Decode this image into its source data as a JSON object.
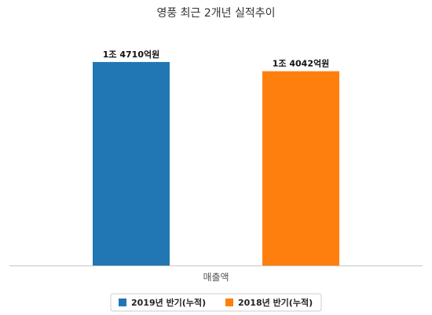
{
  "chart_data": {
    "type": "bar",
    "title": "영풍 최근 2개년 실적추이",
    "categories": [
      "매출액"
    ],
    "series": [
      {
        "name": "2019년 반기(누적)",
        "values": [
          14710
        ],
        "label": "1조 4710억원",
        "color": "#2077b4"
      },
      {
        "name": "2018년 반기(누적)",
        "values": [
          14042
        ],
        "label": "1조 4042억원",
        "color": "#ff7f0e"
      }
    ],
    "value_unit": "억원",
    "ylim": [
      0,
      15500
    ],
    "grid": false,
    "legend_position": "bottom"
  }
}
